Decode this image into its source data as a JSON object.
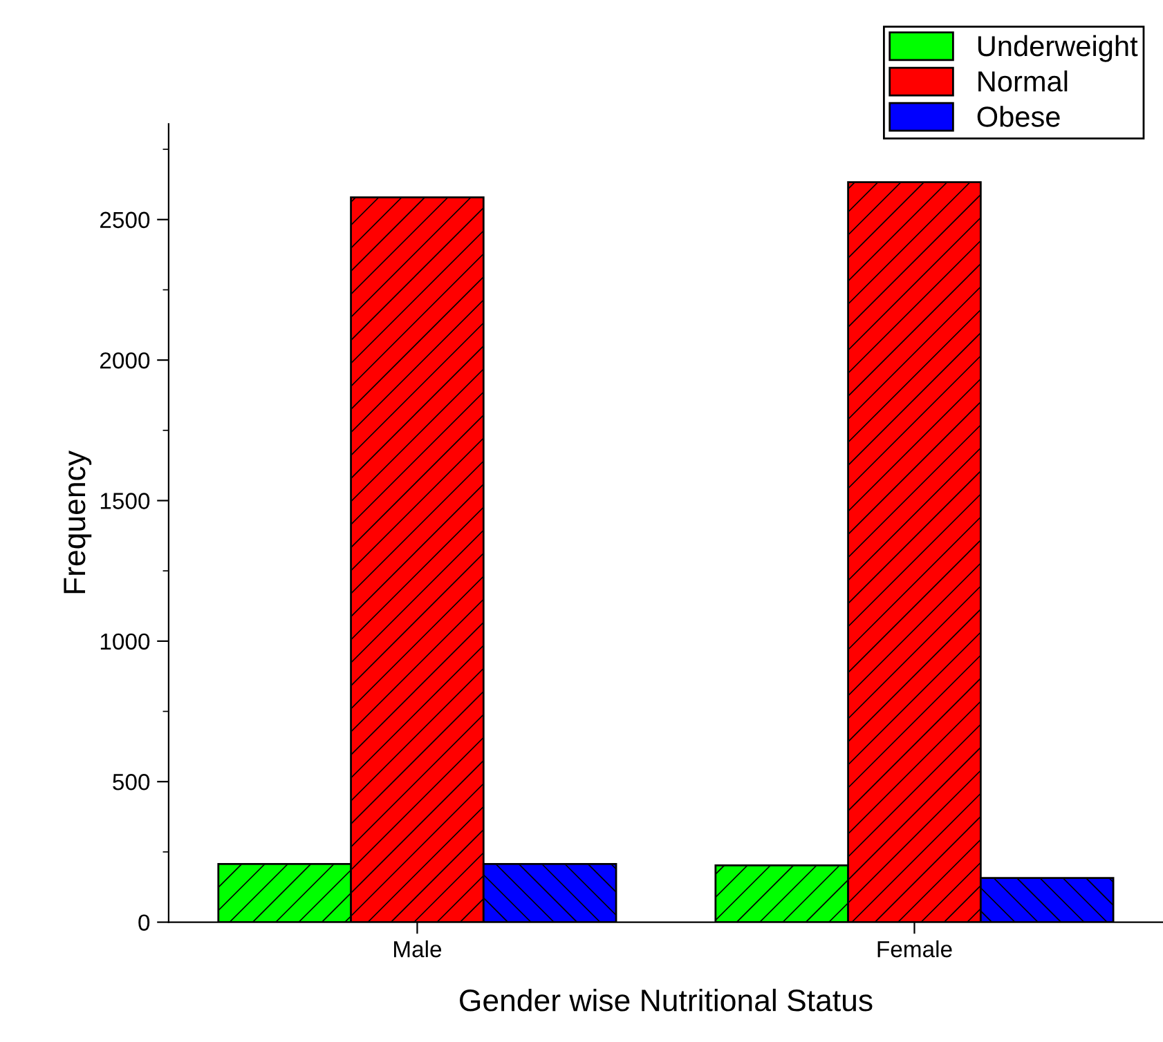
{
  "chart_data": {
    "type": "bar",
    "xlabel": "Gender wise Nutritional Status",
    "ylabel": "Frequency",
    "categories": [
      "Male",
      "Female"
    ],
    "series": [
      {
        "name": "Underweight",
        "color": "#00ff00",
        "values": [
          207,
          202
        ]
      },
      {
        "name": "Normal",
        "color": "#ff0000",
        "values": [
          2579,
          2633
        ]
      },
      {
        "name": "Obese",
        "color": "#0000ff",
        "values": [
          207,
          157
        ]
      }
    ],
    "ylim": [
      0,
      2840
    ],
    "yticks": [
      0,
      500,
      1000,
      1500,
      2000,
      2500
    ],
    "grid": false,
    "legend": "top right"
  }
}
